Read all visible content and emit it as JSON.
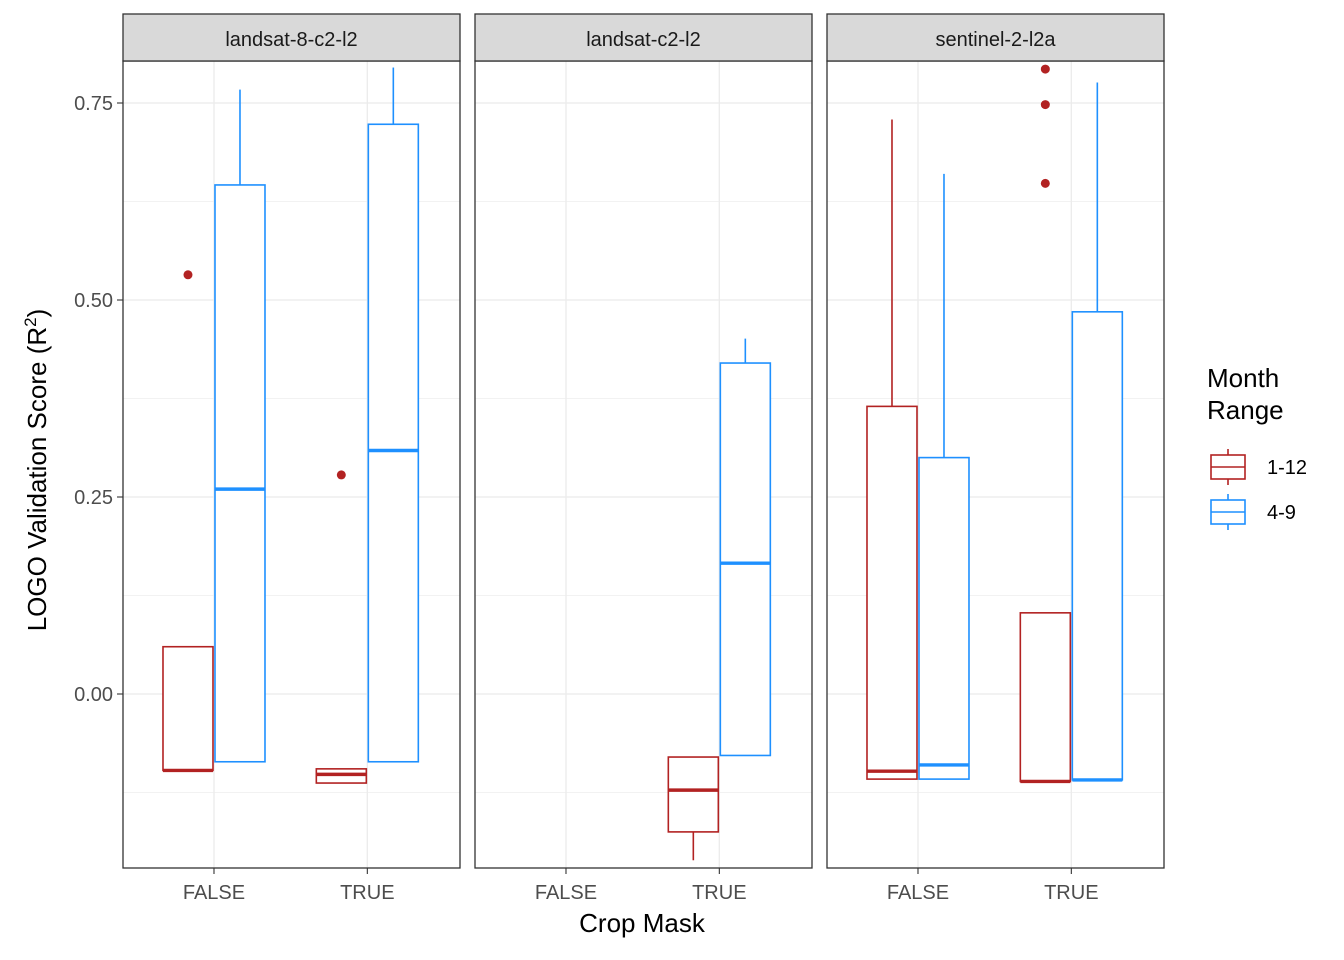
{
  "chart_data": {
    "type": "boxplot",
    "xlabel": "Crop Mask",
    "ylabel": "LOGO Validation Score (R",
    "ylabel_sup": "2",
    "ylabel_close": ")",
    "categories": [
      "FALSE",
      "TRUE"
    ],
    "ylim": [
      -0.22,
      0.805
    ],
    "y_ticks": [
      0.0,
      0.25,
      0.5,
      0.75
    ],
    "y_tick_labels": [
      "0.00",
      "0.25",
      "0.50",
      "0.75"
    ],
    "grid": true,
    "legend": {
      "title_line1": "Month",
      "title_line2": "Range",
      "position": "right",
      "entries": [
        {
          "label": "1-12",
          "color": "#b22222"
        },
        {
          "label": "4-9",
          "color": "#1e90ff"
        }
      ]
    },
    "facets": [
      {
        "title": "landsat-8-c2-l2",
        "boxes": [
          {
            "category": "FALSE",
            "group": "1-12",
            "min": -0.097,
            "q1": -0.097,
            "median": -0.097,
            "q3": 0.06,
            "max": 0.06,
            "outliers": [
              0.532
            ]
          },
          {
            "category": "FALSE",
            "group": "4-9",
            "min": -0.086,
            "q1": -0.086,
            "median": 0.26,
            "q3": 0.646,
            "max": 0.767,
            "outliers": []
          },
          {
            "category": "TRUE",
            "group": "1-12",
            "min": -0.113,
            "q1": -0.113,
            "median": -0.102,
            "q3": -0.095,
            "max": -0.095,
            "outliers": [
              0.278
            ]
          },
          {
            "category": "TRUE",
            "group": "4-9",
            "min": -0.086,
            "q1": -0.086,
            "median": 0.309,
            "q3": 0.723,
            "max": 0.795,
            "outliers": []
          }
        ]
      },
      {
        "title": "landsat-c2-l2",
        "boxes": [
          {
            "category": "TRUE",
            "group": "1-12",
            "min": -0.211,
            "q1": -0.175,
            "median": -0.122,
            "q3": -0.08,
            "max": -0.08,
            "outliers": []
          },
          {
            "category": "TRUE",
            "group": "4-9",
            "min": -0.078,
            "q1": -0.078,
            "median": 0.166,
            "q3": 0.42,
            "max": 0.451,
            "outliers": []
          }
        ]
      },
      {
        "title": "sentinel-2-l2a",
        "boxes": [
          {
            "category": "FALSE",
            "group": "1-12",
            "min": -0.108,
            "q1": -0.108,
            "median": -0.098,
            "q3": 0.365,
            "max": 0.729,
            "outliers": []
          },
          {
            "category": "FALSE",
            "group": "4-9",
            "min": -0.108,
            "q1": -0.108,
            "median": -0.09,
            "q3": 0.3,
            "max": 0.66,
            "outliers": []
          },
          {
            "category": "TRUE",
            "group": "1-12",
            "min": -0.111,
            "q1": -0.111,
            "median": -0.111,
            "q3": 0.103,
            "max": 0.103,
            "outliers": [
              0.648,
              0.748,
              0.793
            ]
          },
          {
            "category": "TRUE",
            "group": "4-9",
            "min": -0.109,
            "q1": -0.109,
            "median": -0.109,
            "q3": 0.485,
            "max": 0.776,
            "outliers": []
          }
        ]
      }
    ]
  }
}
